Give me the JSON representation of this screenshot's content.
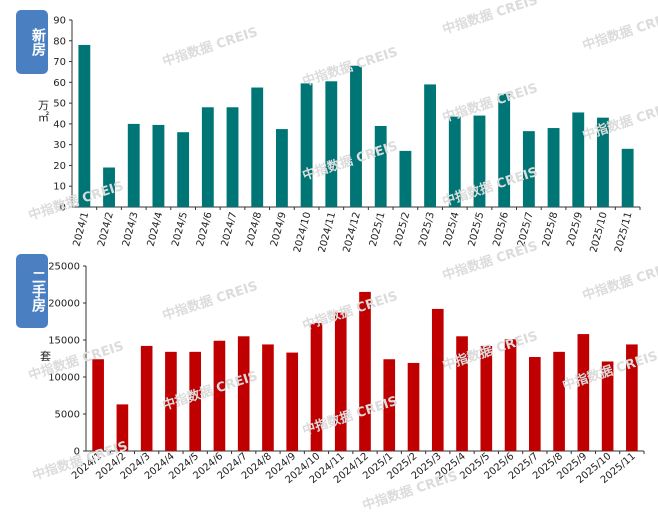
{
  "watermark_text": "中指数据 CREIS",
  "chart_data": [
    {
      "type": "bar",
      "badge": "新房",
      "ylabel": "万㎡",
      "color": "#007575",
      "ylim": [
        0,
        90
      ],
      "yticks": [
        0,
        10,
        20,
        30,
        40,
        50,
        60,
        70,
        80,
        90
      ],
      "categories": [
        "2024/1",
        "2024/2",
        "2024/3",
        "2024/4",
        "2024/5",
        "2024/6",
        "2024/7",
        "2024/8",
        "2024/9",
        "2024/10",
        "2024/11",
        "2024/12",
        "2025/1",
        "2025/2",
        "2025/3",
        "2025/4",
        "2025/5",
        "2025/6",
        "2025/7",
        "2025/8",
        "2025/9",
        "2025/10",
        "2025/11"
      ],
      "values": [
        78,
        19,
        40,
        39.5,
        36,
        48,
        48,
        57.5,
        37.5,
        59.5,
        60.5,
        68,
        39,
        27,
        59,
        43.5,
        44,
        54.5,
        36.5,
        38,
        45.5,
        43,
        28
      ]
    },
    {
      "type": "bar",
      "badge": "二手房",
      "ylabel": "套",
      "color": "#c00000",
      "ylim": [
        0,
        25000
      ],
      "yticks": [
        0,
        5000,
        10000,
        15000,
        20000,
        25000
      ],
      "categories": [
        "2024/1",
        "2024/2",
        "2024/3",
        "2024/4",
        "2024/5",
        "2024/6",
        "2024/7",
        "2024/8",
        "2024/9",
        "2024/10",
        "2024/11",
        "2024/12",
        "2025/1",
        "2025/2",
        "2025/3",
        "2025/4",
        "2025/5",
        "2025/6",
        "2025/7",
        "2025/8",
        "2025/9",
        "2025/10",
        "2025/11"
      ],
      "values": [
        12400,
        6300,
        14200,
        13400,
        13400,
        14900,
        15500,
        14400,
        13300,
        17300,
        18700,
        21500,
        12400,
        11900,
        19200,
        15500,
        14200,
        15100,
        12700,
        13400,
        15800,
        12100,
        14400
      ]
    }
  ]
}
